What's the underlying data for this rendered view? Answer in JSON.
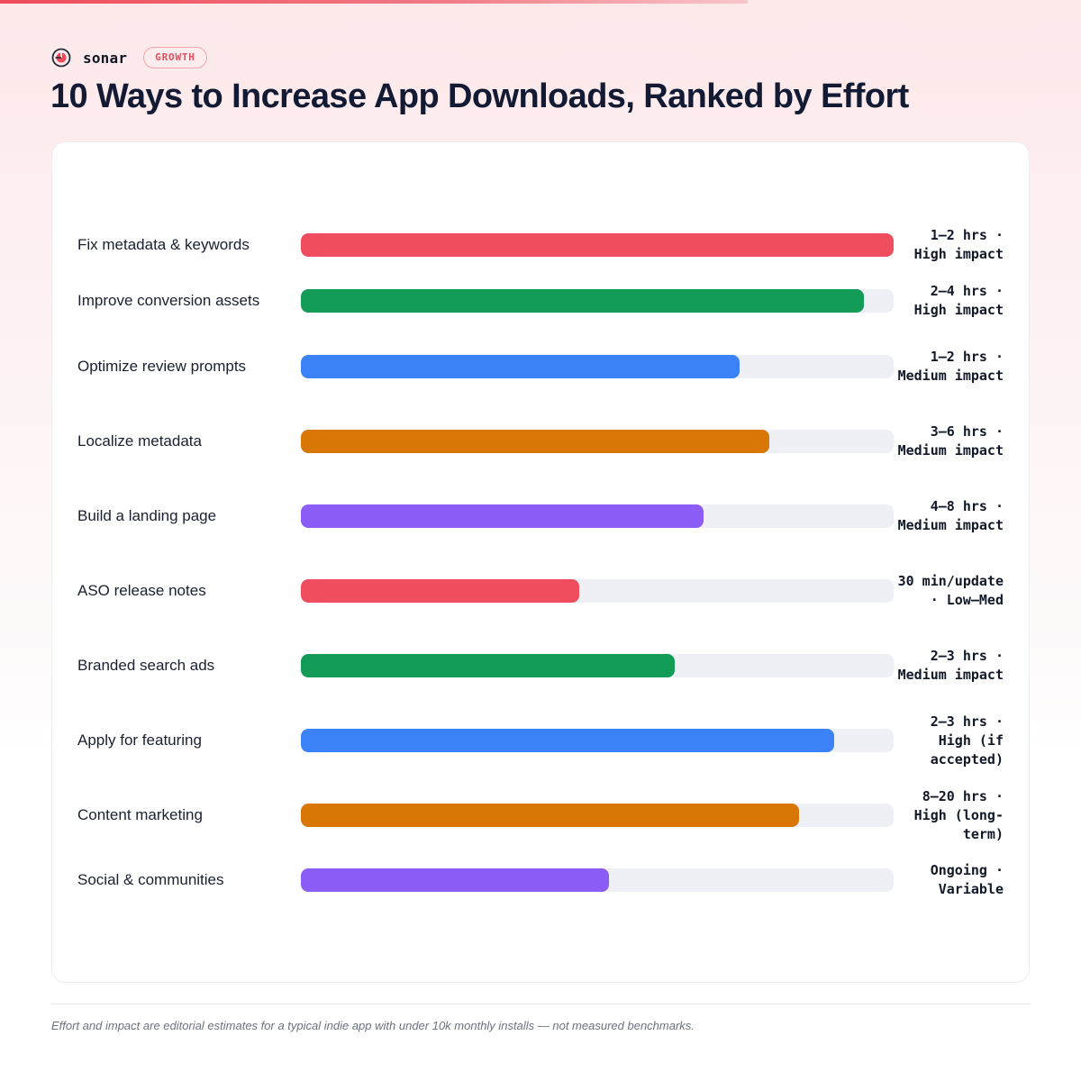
{
  "brand": {
    "name": "sonar",
    "tag": "GROWTH",
    "accent": "#ef4b5b"
  },
  "title": "10 Ways to Increase App Downloads, Ranked by Effort",
  "chart_data": {
    "type": "bar",
    "orientation": "horizontal",
    "title": "10 Ways to Increase App Downloads, Ranked by Effort",
    "xlim": [
      0,
      100
    ],
    "grid": false,
    "legend": "none",
    "categories": [
      "Fix metadata & keywords",
      "Improve conversion assets",
      "Optimize review prompts",
      "Localize metadata",
      "Build a landing page",
      "ASO release notes",
      "Branded search ads",
      "Apply for featuring",
      "Content marketing",
      "Social & communities"
    ],
    "values": [
      100,
      95,
      74,
      79,
      68,
      47,
      63,
      90,
      84,
      52
    ],
    "colors": [
      "#f04e5e",
      "#129c58",
      "#3b82f6",
      "#d97706",
      "#8b5cf6",
      "#f04e5e",
      "#129c58",
      "#3b82f6",
      "#d97706",
      "#8b5cf6"
    ],
    "data_labels": [
      "1–2 hrs · High impact",
      "2–4 hrs · High impact",
      "1–2 hrs · Medium impact",
      "3–6 hrs · Medium impact",
      "4–8 hrs · Medium impact",
      "30 min/update · Low–Med",
      "2–3 hrs · Medium impact",
      "2–3 hrs · High (if accepted)",
      "8–20 hrs · High (long-term)",
      "Ongoing · Variable"
    ]
  },
  "footnote": "Effort and impact are editorial estimates for a typical indie app with under 10k monthly installs — not measured benchmarks.",
  "colors": {
    "track": "#eef0f5",
    "title": "#131b34"
  }
}
